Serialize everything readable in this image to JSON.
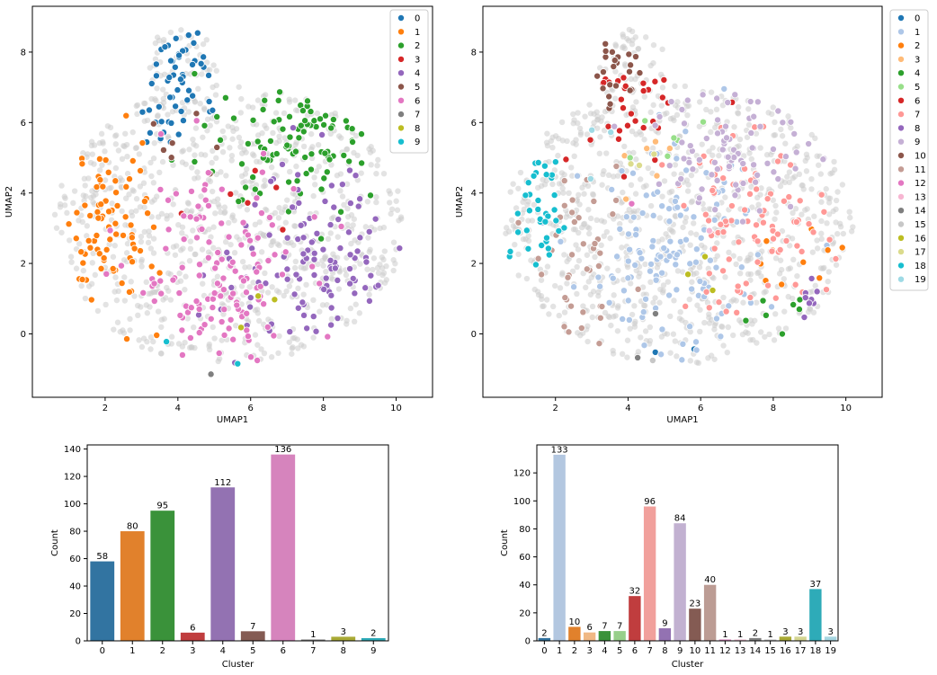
{
  "chart_data": [
    {
      "type": "scatter",
      "xlabel": "UMAP1",
      "ylabel": "UMAP2",
      "xlim": [
        0.0,
        11.0
      ],
      "ylim": [
        -1.8,
        9.3
      ],
      "xticks": [
        2,
        4,
        6,
        8,
        10
      ],
      "yticks": [
        0,
        2,
        4,
        6,
        8
      ],
      "legend_position": "top-right (inside)",
      "legend_labels": [
        "0",
        "1",
        "2",
        "3",
        "4",
        "5",
        "6",
        "7",
        "8",
        "9"
      ],
      "colors": [
        "#1f77b4",
        "#ff7f0e",
        "#2ca02c",
        "#d62728",
        "#9467bd",
        "#8c564b",
        "#e377c2",
        "#7f7f7f",
        "#bcbd22",
        "#17becf"
      ],
      "background": "dense light-gray cloud of points",
      "highlighted_counts": [
        58,
        80,
        95,
        6,
        112,
        7,
        136,
        1,
        3,
        2
      ]
    },
    {
      "type": "scatter",
      "xlabel": "UMAP1",
      "ylabel": "UMAP2",
      "xlim": [
        0.0,
        11.0
      ],
      "ylim": [
        -1.8,
        9.3
      ],
      "xticks": [
        2,
        4,
        6,
        8,
        10
      ],
      "yticks": [
        0,
        2,
        4,
        6,
        8
      ],
      "legend_position": "outside right, top",
      "legend_labels": [
        "0",
        "1",
        "2",
        "3",
        "4",
        "5",
        "6",
        "7",
        "8",
        "9",
        "10",
        "11",
        "12",
        "13",
        "14",
        "15",
        "16",
        "17",
        "18",
        "19"
      ],
      "colors": [
        "#1f77b4",
        "#aec7e8",
        "#ff7f0e",
        "#ffbb78",
        "#2ca02c",
        "#98df8a",
        "#d62728",
        "#ff9896",
        "#9467bd",
        "#c5b0d5",
        "#8c564b",
        "#c49c94",
        "#e377c2",
        "#f7b6d2",
        "#7f7f7f",
        "#c7c7c7",
        "#bcbd22",
        "#dbdb8d",
        "#17becf",
        "#9edae5"
      ],
      "background": "dense light-gray cloud of points",
      "highlighted_counts": [
        2,
        133,
        10,
        6,
        7,
        7,
        32,
        96,
        9,
        84,
        23,
        40,
        1,
        1,
        2,
        1,
        3,
        3,
        37,
        3
      ]
    },
    {
      "type": "bar",
      "xlabel": "Cluster",
      "ylabel": "Count",
      "categories": [
        "0",
        "1",
        "2",
        "3",
        "4",
        "5",
        "6",
        "7",
        "8",
        "9"
      ],
      "values": [
        58,
        80,
        95,
        6,
        112,
        7,
        136,
        1,
        3,
        2
      ],
      "ylim": [
        0,
        143
      ],
      "yticks": [
        0,
        20,
        40,
        60,
        80,
        100,
        120,
        140
      ],
      "colors": [
        "#3274a1",
        "#e1812c",
        "#3a923a",
        "#c03d3e",
        "#9372b2",
        "#845b53",
        "#d684bd",
        "#7f7f7f",
        "#a9aa35",
        "#2eabb8"
      ]
    },
    {
      "type": "bar",
      "xlabel": "Cluster",
      "ylabel": "Count",
      "categories": [
        "0",
        "1",
        "2",
        "3",
        "4",
        "5",
        "6",
        "7",
        "8",
        "9",
        "10",
        "11",
        "12",
        "13",
        "14",
        "15",
        "16",
        "17",
        "18",
        "19"
      ],
      "values": [
        2,
        133,
        10,
        6,
        7,
        7,
        32,
        96,
        9,
        84,
        23,
        40,
        1,
        1,
        2,
        1,
        3,
        3,
        37,
        3
      ],
      "ylim": [
        0,
        140
      ],
      "yticks": [
        0,
        20,
        40,
        60,
        80,
        100,
        120
      ],
      "colors": [
        "#3274a1",
        "#b3c7e0",
        "#e1812c",
        "#f0b884",
        "#3a923a",
        "#97cf8a",
        "#c03d3e",
        "#f1a09c",
        "#9372b2",
        "#c2b1d1",
        "#845b53",
        "#bc9c94",
        "#d684bd",
        "#f0c1d4",
        "#7f7f7f",
        "#c5c5c5",
        "#a9aa35",
        "#d4d591",
        "#2eabb8",
        "#a6d6e1"
      ]
    }
  ]
}
